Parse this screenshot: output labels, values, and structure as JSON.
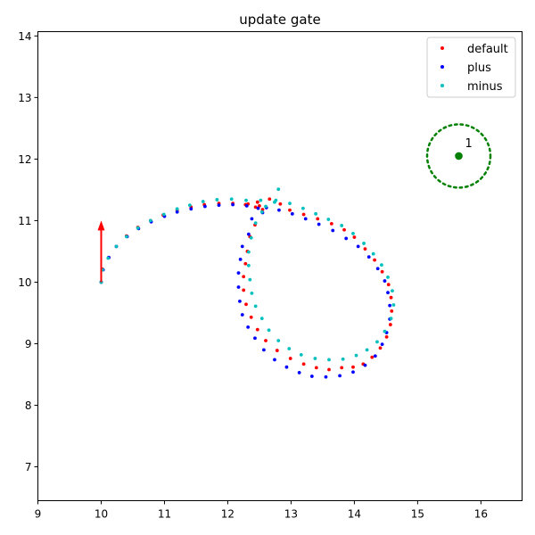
{
  "chart_data": {
    "type": "scatter",
    "title": "update gate",
    "xlabel": "",
    "ylabel": "",
    "xlim": [
      9,
      16.65
    ],
    "ylim": [
      6.45,
      14.07
    ],
    "xticks": [
      9,
      10,
      11,
      12,
      13,
      14,
      15,
      16
    ],
    "yticks": [
      7,
      8,
      9,
      10,
      11,
      12,
      13,
      14
    ],
    "grid": false,
    "legend": {
      "placement": "top-right",
      "entries": [
        "default",
        "plus",
        "minus"
      ]
    },
    "series": [
      {
        "name": "default",
        "color": "#ff0000",
        "points": [
          [
            10.0,
            10.0
          ],
          [
            10.02,
            10.21
          ],
          [
            10.12,
            10.4
          ],
          [
            10.24,
            10.58
          ],
          [
            10.4,
            10.75
          ],
          [
            10.58,
            10.89
          ],
          [
            10.78,
            11.0
          ],
          [
            10.98,
            11.09
          ],
          [
            11.2,
            11.17
          ],
          [
            11.42,
            11.22
          ],
          [
            11.63,
            11.26
          ],
          [
            11.86,
            11.28
          ],
          [
            12.08,
            11.28
          ],
          [
            12.28,
            11.26
          ],
          [
            12.44,
            11.22
          ],
          [
            12.55,
            11.18
          ],
          [
            12.5,
            11.24
          ],
          [
            12.32,
            11.27
          ],
          [
            12.47,
            11.3
          ],
          [
            12.66,
            11.35
          ],
          [
            12.83,
            11.27
          ],
          [
            12.98,
            11.17
          ],
          [
            13.2,
            11.1
          ],
          [
            13.42,
            11.03
          ],
          [
            13.64,
            10.95
          ],
          [
            13.84,
            10.85
          ],
          [
            14.0,
            10.73
          ],
          [
            14.17,
            10.54
          ],
          [
            14.32,
            10.36
          ],
          [
            14.44,
            10.17
          ],
          [
            14.54,
            9.96
          ],
          [
            14.58,
            9.75
          ],
          [
            14.59,
            9.53
          ],
          [
            14.57,
            9.31
          ],
          [
            14.51,
            9.11
          ],
          [
            14.41,
            8.93
          ],
          [
            14.28,
            8.78
          ],
          [
            14.14,
            8.67
          ],
          [
            13.98,
            8.62
          ],
          [
            13.8,
            8.61
          ],
          [
            13.6,
            8.58
          ],
          [
            13.4,
            8.61
          ],
          [
            13.2,
            8.67
          ],
          [
            12.99,
            8.76
          ],
          [
            12.78,
            8.89
          ],
          [
            12.6,
            9.05
          ],
          [
            12.47,
            9.23
          ],
          [
            12.37,
            9.43
          ],
          [
            12.29,
            9.64
          ],
          [
            12.25,
            9.87
          ],
          [
            12.25,
            10.09
          ],
          [
            12.28,
            10.3
          ],
          [
            12.31,
            10.5
          ],
          [
            12.35,
            10.74
          ],
          [
            12.43,
            10.93
          ]
        ]
      },
      {
        "name": "plus",
        "color": "#0000ff",
        "points": [
          [
            10.0,
            10.0
          ],
          [
            10.03,
            10.2
          ],
          [
            10.12,
            10.4
          ],
          [
            10.24,
            10.58
          ],
          [
            10.41,
            10.74
          ],
          [
            10.59,
            10.87
          ],
          [
            10.79,
            10.98
          ],
          [
            11.0,
            11.07
          ],
          [
            11.2,
            11.14
          ],
          [
            11.42,
            11.19
          ],
          [
            11.64,
            11.23
          ],
          [
            11.86,
            11.25
          ],
          [
            12.08,
            11.26
          ],
          [
            12.3,
            11.24
          ],
          [
            12.48,
            11.2
          ],
          [
            12.55,
            11.13
          ],
          [
            12.38,
            11.03
          ],
          [
            12.33,
            10.78
          ],
          [
            12.23,
            10.58
          ],
          [
            12.2,
            10.37
          ],
          [
            12.17,
            10.15
          ],
          [
            12.17,
            9.92
          ],
          [
            12.19,
            9.69
          ],
          [
            12.23,
            9.47
          ],
          [
            12.32,
            9.27
          ],
          [
            12.43,
            9.09
          ],
          [
            12.57,
            8.9
          ],
          [
            12.74,
            8.74
          ],
          [
            12.93,
            8.62
          ],
          [
            13.13,
            8.53
          ],
          [
            13.33,
            8.47
          ],
          [
            13.55,
            8.46
          ],
          [
            13.77,
            8.48
          ],
          [
            13.98,
            8.54
          ],
          [
            14.17,
            8.65
          ],
          [
            14.33,
            8.8
          ],
          [
            14.44,
            8.99
          ],
          [
            14.51,
            9.18
          ],
          [
            14.56,
            9.4
          ],
          [
            14.56,
            9.62
          ],
          [
            14.53,
            9.83
          ],
          [
            14.48,
            10.02
          ],
          [
            14.37,
            10.22
          ],
          [
            14.23,
            10.41
          ],
          [
            14.06,
            10.58
          ],
          [
            13.87,
            10.71
          ],
          [
            13.66,
            10.84
          ],
          [
            13.44,
            10.94
          ],
          [
            13.23,
            11.03
          ],
          [
            13.02,
            11.11
          ],
          [
            12.81,
            11.17
          ],
          [
            12.61,
            11.21
          ]
        ]
      },
      {
        "name": "minus",
        "color": "#00bfbf",
        "points": [
          [
            10.0,
            10.0
          ],
          [
            10.02,
            10.2
          ],
          [
            10.11,
            10.39
          ],
          [
            10.24,
            10.58
          ],
          [
            10.4,
            10.74
          ],
          [
            10.58,
            10.88
          ],
          [
            10.78,
            11.0
          ],
          [
            10.99,
            11.1
          ],
          [
            11.2,
            11.19
          ],
          [
            11.4,
            11.25
          ],
          [
            11.61,
            11.31
          ],
          [
            11.83,
            11.34
          ],
          [
            12.06,
            11.35
          ],
          [
            12.29,
            11.33
          ],
          [
            12.52,
            11.33
          ],
          [
            12.8,
            11.51
          ],
          [
            12.74,
            11.3
          ],
          [
            12.6,
            11.23
          ],
          [
            12.54,
            11.14
          ],
          [
            12.44,
            10.96
          ],
          [
            12.37,
            10.72
          ],
          [
            12.33,
            10.49
          ],
          [
            12.33,
            10.27
          ],
          [
            12.35,
            10.04
          ],
          [
            12.38,
            9.82
          ],
          [
            12.44,
            9.61
          ],
          [
            12.54,
            9.41
          ],
          [
            12.65,
            9.22
          ],
          [
            12.8,
            9.05
          ],
          [
            12.97,
            8.92
          ],
          [
            13.16,
            8.82
          ],
          [
            13.38,
            8.76
          ],
          [
            13.6,
            8.74
          ],
          [
            13.82,
            8.75
          ],
          [
            14.03,
            8.81
          ],
          [
            14.2,
            8.9
          ],
          [
            14.36,
            9.03
          ],
          [
            14.48,
            9.2
          ],
          [
            14.58,
            9.41
          ],
          [
            14.62,
            9.63
          ],
          [
            14.6,
            9.86
          ],
          [
            14.53,
            10.08
          ],
          [
            14.43,
            10.28
          ],
          [
            14.3,
            10.46
          ],
          [
            14.15,
            10.63
          ],
          [
            13.98,
            10.79
          ],
          [
            13.8,
            10.92
          ],
          [
            13.59,
            11.02
          ],
          [
            13.39,
            11.11
          ],
          [
            13.19,
            11.2
          ],
          [
            12.98,
            11.28
          ],
          [
            12.76,
            11.33
          ]
        ]
      }
    ],
    "arrow": {
      "color": "#ff0000",
      "from": [
        10.0,
        10.0
      ],
      "to": [
        10.0,
        11.0
      ]
    },
    "target": {
      "label": "1",
      "color": "#008000",
      "center": [
        15.65,
        12.05
      ],
      "radius": 0.5
    }
  }
}
